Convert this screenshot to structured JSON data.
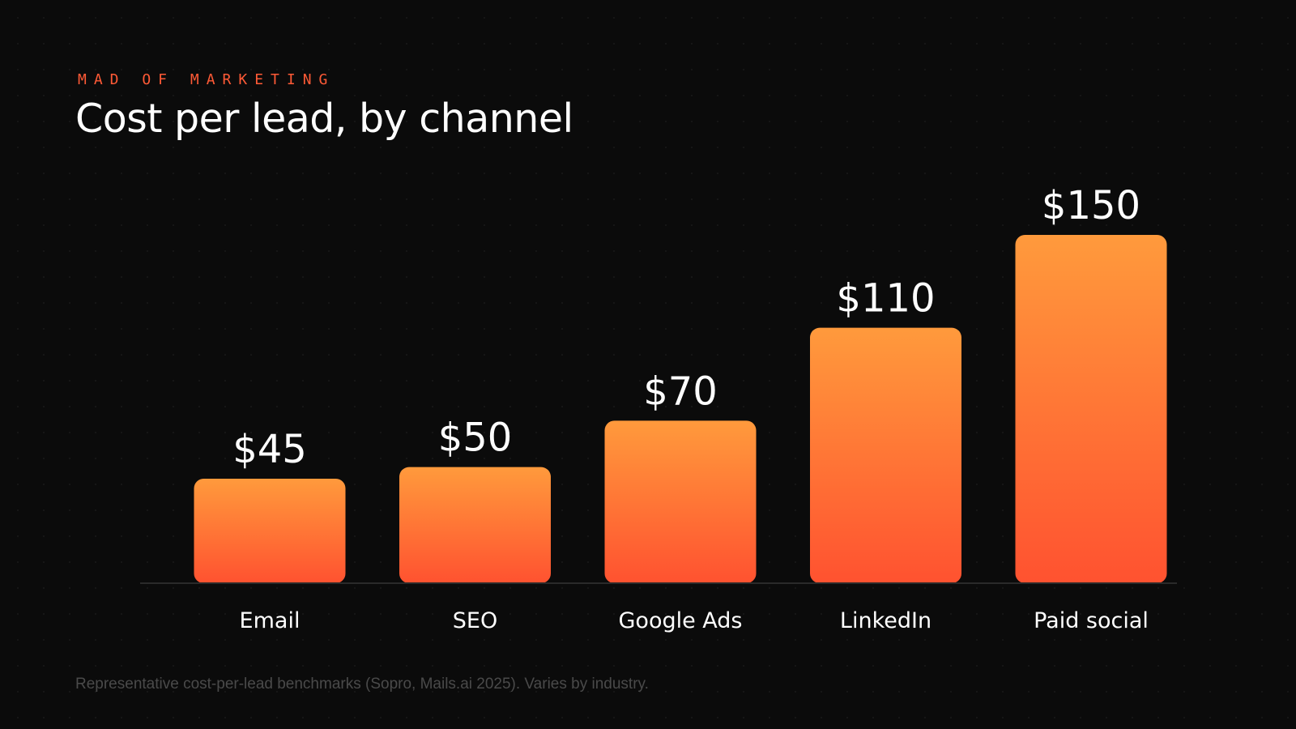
{
  "header": {
    "kicker": "MAD OF MARKETING",
    "title": "Cost per lead, by channel"
  },
  "chart_data": {
    "type": "bar",
    "title": "Cost per lead, by channel",
    "categories": [
      "Email",
      "SEO",
      "Google Ads",
      "LinkedIn",
      "Paid social"
    ],
    "values": [
      45,
      50,
      70,
      110,
      150
    ],
    "data_labels": [
      "$45",
      "$50",
      "$70",
      "$110",
      "$150"
    ],
    "xlabel": "",
    "ylabel": "",
    "ylim": [
      0,
      150
    ],
    "grid": false,
    "legend": "none"
  },
  "footnote": "Representative cost-per-lead benchmarks (Sopro, Mails.ai 2025). Varies by industry.",
  "colors": {
    "background": "#0b0b0b",
    "accent": "#ff5a36",
    "bar_top": "#ff9a3c",
    "bar_bottom": "#ff5230",
    "baseline": "#2a2a2a",
    "footnote": "#4a4a4a"
  }
}
